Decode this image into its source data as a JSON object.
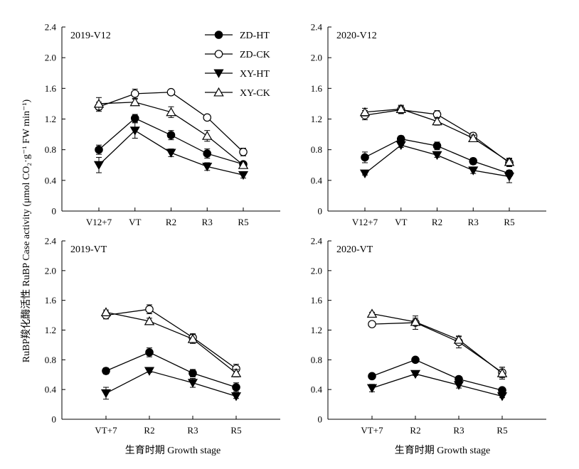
{
  "figure": {
    "ylabel": "RuBP羧化酶活性 RuBP Case activity (μmol CO₂·g⁻¹ FW min⁻¹)",
    "xlabel": "生育时期 Growth stage"
  },
  "legend": [
    {
      "name": "ZD-HT",
      "marker": "circle-filled"
    },
    {
      "name": "ZD-CK",
      "marker": "circle-open"
    },
    {
      "name": "XY-HT",
      "marker": "triangle-down-filled"
    },
    {
      "name": "XY-CK",
      "marker": "triangle-up-open"
    }
  ],
  "chart_data": [
    {
      "type": "line",
      "title": "2019-V12",
      "categories": [
        "V12+7",
        "VT",
        "R2",
        "R3",
        "R5"
      ],
      "ylim": [
        0,
        2.4
      ],
      "yticks": [
        "0",
        "0.4",
        "0.8",
        "1.2",
        "1.6",
        "2.0",
        "2.4"
      ],
      "series": [
        {
          "name": "ZD-HT",
          "values": [
            0.8,
            1.21,
            0.99,
            0.75,
            0.61
          ],
          "err": [
            0.06,
            0.05,
            0.06,
            0.06,
            0.03
          ]
        },
        {
          "name": "ZD-CK",
          "values": [
            1.36,
            1.53,
            1.55,
            1.22,
            0.77
          ],
          "err": [
            0.06,
            0.06,
            0.03,
            0.03,
            0.05
          ]
        },
        {
          "name": "XY-HT",
          "values": [
            0.6,
            1.05,
            0.76,
            0.58,
            0.47
          ],
          "err": [
            0.1,
            0.1,
            0.05,
            0.05,
            0.04
          ]
        },
        {
          "name": "XY-CK",
          "values": [
            1.4,
            1.42,
            1.29,
            0.98,
            0.6
          ],
          "err": [
            0.08,
            0.04,
            0.07,
            0.07,
            0.03
          ]
        }
      ]
    },
    {
      "type": "line",
      "title": "2020-V12",
      "categories": [
        "V12+7",
        "VT",
        "R2",
        "R3",
        "R5"
      ],
      "ylim": [
        0,
        2.4
      ],
      "yticks": [
        "0",
        "0.4",
        "0.8",
        "1.2",
        "1.6",
        "2.0",
        "2.4"
      ],
      "series": [
        {
          "name": "ZD-HT",
          "values": [
            0.7,
            0.94,
            0.85,
            0.65,
            0.49
          ],
          "err": [
            0.07,
            0.04,
            0.05,
            0.04,
            0.04
          ]
        },
        {
          "name": "ZD-CK",
          "values": [
            1.25,
            1.32,
            1.26,
            0.98,
            0.63
          ],
          "err": [
            0.06,
            0.05,
            0.05,
            0.04,
            0.05
          ]
        },
        {
          "name": "XY-HT",
          "values": [
            0.49,
            0.86,
            0.73,
            0.53,
            0.45
          ],
          "err": [
            0.02,
            0.03,
            0.03,
            0.04,
            0.08
          ]
        },
        {
          "name": "XY-CK",
          "values": [
            1.29,
            1.33,
            1.17,
            0.95,
            0.64
          ],
          "err": [
            0.05,
            0.05,
            0.05,
            0.04,
            0.05
          ]
        }
      ]
    },
    {
      "type": "line",
      "title": "2019-VT",
      "categories": [
        "VT+7",
        "R2",
        "R3",
        "R5"
      ],
      "ylim": [
        0,
        2.4
      ],
      "yticks": [
        "0",
        "0.4",
        "0.8",
        "1.2",
        "1.6",
        "2.0",
        "2.4"
      ],
      "series": [
        {
          "name": "ZD-HT",
          "values": [
            0.65,
            0.9,
            0.62,
            0.43
          ],
          "err": [
            0.04,
            0.06,
            0.05,
            0.06
          ]
        },
        {
          "name": "ZD-CK",
          "values": [
            1.4,
            1.48,
            1.1,
            0.68
          ],
          "err": [
            0.05,
            0.06,
            0.05,
            0.06
          ]
        },
        {
          "name": "XY-HT",
          "values": [
            0.35,
            0.65,
            0.49,
            0.31
          ],
          "err": [
            0.08,
            0.02,
            0.06,
            0.03
          ]
        },
        {
          "name": "XY-CK",
          "values": [
            1.44,
            1.32,
            1.08,
            0.62
          ],
          "err": [
            0.03,
            0.04,
            0.06,
            0.05
          ]
        }
      ]
    },
    {
      "type": "line",
      "title": "2020-VT",
      "categories": [
        "VT+7",
        "R2",
        "R3",
        "R5"
      ],
      "ylim": [
        0,
        2.4
      ],
      "yticks": [
        "0",
        "0.4",
        "0.8",
        "1.2",
        "1.6",
        "2.0",
        "2.4"
      ],
      "series": [
        {
          "name": "ZD-HT",
          "values": [
            0.58,
            0.8,
            0.54,
            0.39
          ],
          "err": [
            0.03,
            0.03,
            0.03,
            0.03
          ]
        },
        {
          "name": "ZD-CK",
          "values": [
            1.28,
            1.3,
            1.04,
            0.63
          ],
          "err": [
            0.02,
            0.09,
            0.08,
            0.07
          ]
        },
        {
          "name": "XY-HT",
          "values": [
            0.42,
            0.61,
            0.46,
            0.31
          ],
          "err": [
            0.05,
            0.02,
            0.04,
            0.02
          ]
        },
        {
          "name": "XY-CK",
          "values": [
            1.42,
            1.31,
            1.07,
            0.62
          ],
          "err": [
            0.02,
            0.05,
            0.04,
            0.08
          ]
        }
      ]
    }
  ]
}
